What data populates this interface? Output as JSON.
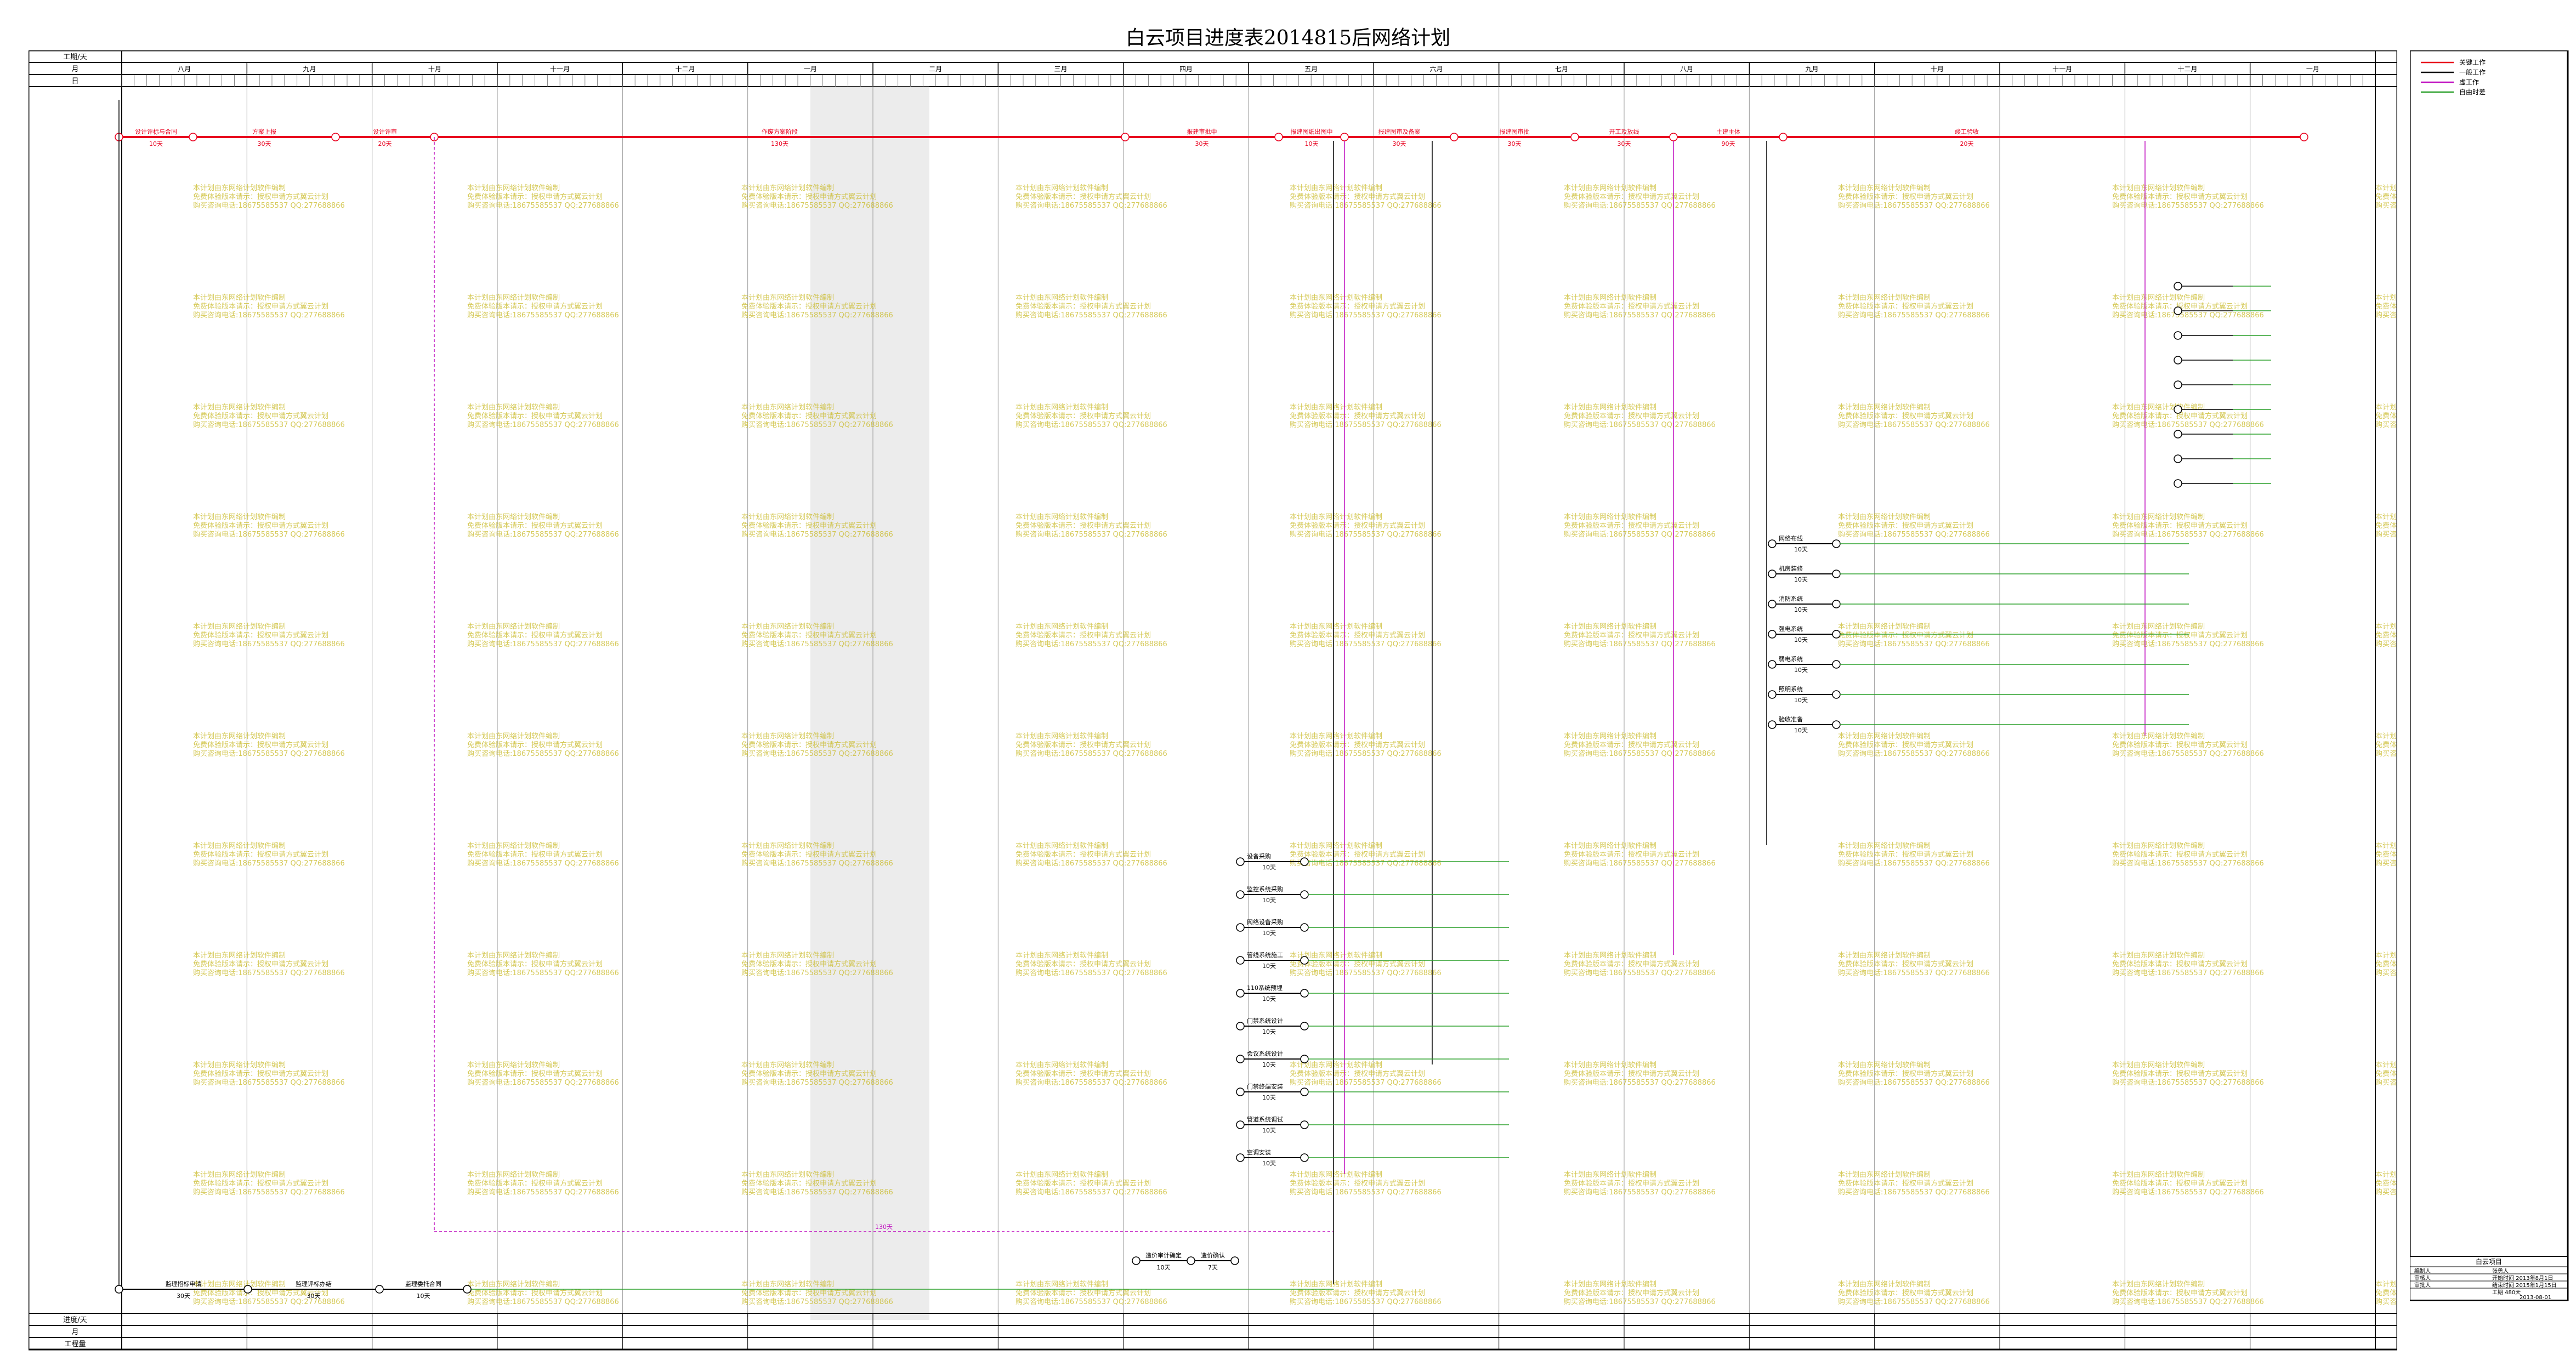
{
  "title": "白云项目进度表2014815后网络计划",
  "header": {
    "row_labels": [
      "工期/天",
      "月",
      "日"
    ],
    "months": [
      "八月",
      "九月",
      "十月",
      "十一月",
      "十二月",
      "一月",
      "二月",
      "三月",
      "四月",
      "五月",
      "六月",
      "七月",
      "八月",
      "九月",
      "十月",
      "十一月",
      "十二月",
      "一月"
    ],
    "bottom_labels": [
      "进度/天",
      "月",
      "工程量"
    ]
  },
  "legend": {
    "items": [
      {
        "label": "关键工作",
        "color": "#e8001e"
      },
      {
        "label": "一般工作",
        "color": "#111111"
      },
      {
        "label": "虚工作",
        "color": "#c010c0"
      },
      {
        "label": "自由时差",
        "color": "#2ca02c"
      }
    ]
  },
  "critical_path": [
    {
      "label": "设计评标与合同",
      "dur": "10天"
    },
    {
      "label": "方案上报",
      "dur": "30天"
    },
    {
      "label": "设计评审",
      "dur": "20天"
    },
    {
      "label": "作废方案阶段",
      "dur": "130天"
    },
    {
      "label": "报建审批中",
      "dur": "30天"
    },
    {
      "label": "报建图纸出图中",
      "dur": "10天"
    },
    {
      "label": "报建图审及备案",
      "dur": "30天"
    },
    {
      "label": "报建图审批",
      "dur": "30天"
    },
    {
      "label": "开工及放线",
      "dur": "30天"
    },
    {
      "label": "土建主体",
      "dur": "90天"
    },
    {
      "label": "竣工验收",
      "dur": "20天"
    }
  ],
  "work_lines": [
    {
      "label": "设备采购",
      "dur": "10天"
    },
    {
      "label": "监控系统采购",
      "dur": "10天"
    },
    {
      "label": "网络设备采购",
      "dur": "10天"
    },
    {
      "label": "管线系统施工",
      "dur": "10天"
    },
    {
      "label": "110系统预埋",
      "dur": "10天"
    },
    {
      "label": "门禁系统设计",
      "dur": "10天"
    },
    {
      "label": "会议系统设计",
      "dur": "10天"
    },
    {
      "label": "门禁终端安装",
      "dur": "10天"
    },
    {
      "label": "管道系统调试",
      "dur": "10天"
    },
    {
      "label": "空调安装",
      "dur": "10天"
    },
    {
      "label": "网络布线",
      "dur": "10天"
    },
    {
      "label": "机房装修",
      "dur": "10天"
    },
    {
      "label": "消防系统",
      "dur": "10天"
    },
    {
      "label": "强电系统",
      "dur": "10天"
    },
    {
      "label": "弱电系统",
      "dur": "10天"
    },
    {
      "label": "照明系统",
      "dur": "10天"
    },
    {
      "label": "验收准备",
      "dur": "10天"
    }
  ],
  "lower_chain": [
    {
      "label": "监理招标申请",
      "dur": "30天"
    },
    {
      "label": "监理评标办结",
      "dur": "30天"
    },
    {
      "label": "监理委托合同",
      "dur": "10天"
    }
  ],
  "mid_chain": [
    {
      "label": "造价审计确定",
      "dur": "10天"
    },
    {
      "label": "造价确认",
      "dur": "7天"
    }
  ],
  "float_notes": [
    "130天",
    "20天",
    "34天",
    "10天"
  ],
  "watermark": {
    "line1": "本计划由东网络计划软件编制",
    "line2": "免费体验版本请示：授权申请方式翼云计划",
    "line3": "购买咨询电话:18675585537 QQ:277688866"
  },
  "titleblock": {
    "project": "白云项目",
    "rows": [
      {
        "k": "编制人",
        "v": "张勇人"
      },
      {
        "k": "审核人",
        "v": "开始时间 2013年8月1日"
      },
      {
        "k": "审批人",
        "v": "结束时间 2015年1月15日"
      },
      {
        "k": "",
        "v": "工期 480天"
      }
    ],
    "date": "2013-08-01"
  }
}
